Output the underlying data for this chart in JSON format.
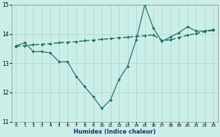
{
  "xlabel": "Humidex (Indice chaleur)",
  "x": [
    0,
    1,
    2,
    3,
    4,
    5,
    6,
    7,
    8,
    9,
    10,
    11,
    12,
    13,
    14,
    15,
    16,
    17,
    18,
    19,
    20,
    21,
    22,
    23
  ],
  "y_line1": [
    13.6,
    13.7,
    13.4,
    13.4,
    13.35,
    13.05,
    13.05,
    12.55,
    12.2,
    11.85,
    11.45,
    11.75,
    12.45,
    12.9,
    13.8,
    15.0,
    14.2,
    13.75,
    13.9,
    14.05,
    14.25,
    14.1,
    14.1,
    14.15
  ],
  "y_line2": [
    13.58,
    13.6,
    13.63,
    13.65,
    13.67,
    13.7,
    13.72,
    13.74,
    13.77,
    13.79,
    13.82,
    13.84,
    13.87,
    13.89,
    13.92,
    13.94,
    13.97,
    13.78,
    13.8,
    13.88,
    13.96,
    14.02,
    14.08,
    14.13
  ],
  "line_color": "#1f6f5e",
  "bg_color": "#cceee8",
  "grid_color": "#aad8d0",
  "ylim": [
    11,
    15
  ],
  "xlim": [
    -0.5,
    23.5
  ],
  "yticks": [
    11,
    12,
    13,
    14,
    15
  ],
  "xticks": [
    0,
    1,
    2,
    3,
    4,
    5,
    6,
    7,
    8,
    9,
    10,
    11,
    12,
    13,
    14,
    15,
    16,
    17,
    18,
    19,
    20,
    21,
    22,
    23
  ]
}
